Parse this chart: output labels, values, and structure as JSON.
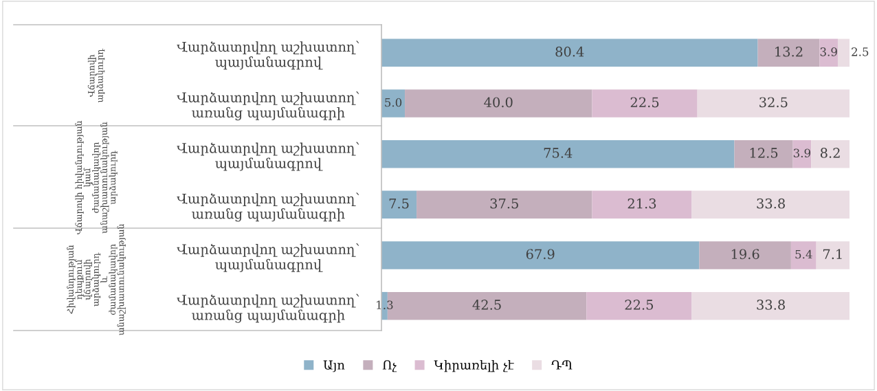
{
  "chart_data": {
    "type": "bar",
    "orientation": "horizontal",
    "stacked": true,
    "data_labels": true,
    "categories": [
      "Վարձատրվող աշխատող՝\nպայմանագրով",
      "Վարձատրվող աշխատող՝\nառանց պայմանագրի",
      "Վարձատրվող աշխատող՝\nպայմանագրով",
      "Վարձատրվող աշխատող՝\nառանց պայմանագրի",
      "Վարձատրվող աշխատող՝\nպայմանագրով",
      "Վարձատրվող աշխատող՝\nառանց պայմանագրի"
    ],
    "annotations": [
      "Վճարովի\nարձակուրդ",
      "Վճարովի հիվանդության\nկամ\nժամանակավոր\nանաշխատունակության\nարձակուրդ",
      "Հիվանդության\nդեպքում\nվճարովի\nարձակուրդ\nև\nժամանակավոր\nանաշխատունակության"
    ],
    "xlim": [
      0,
      100
    ],
    "legend": "bottom",
    "series": [
      {
        "name": "Այո",
        "color": "#8fb3c9",
        "values": [
          80.4,
          5.0,
          75.4,
          7.5,
          67.9,
          1.3
        ],
        "value_labels": [
          "80.4",
          "5.0",
          "75.4",
          "7.5",
          "67.9",
          "1.3"
        ]
      },
      {
        "name": "Ոչ",
        "color": "#c4afbc",
        "values": [
          13.2,
          40.0,
          12.5,
          37.5,
          19.6,
          42.5
        ],
        "value_labels": [
          "13.2",
          "40.0",
          "12.5",
          "37.5",
          "19.6",
          "42.5"
        ]
      },
      {
        "name": "Կիրառելի չէ",
        "color": "#dbbcd1",
        "values": [
          3.9,
          22.5,
          3.9,
          21.3,
          5.4,
          22.5
        ],
        "value_labels": [
          "3.9",
          "22.5",
          "3.9",
          "21.3",
          "5.4",
          "22.5"
        ]
      },
      {
        "name": "ԴՊ",
        "color": "#eadde3",
        "values": [
          2.5,
          32.5,
          8.2,
          33.8,
          7.1,
          33.8
        ],
        "value_labels": [
          "2.5",
          "32.5",
          "8.2",
          "33.8",
          "7.1",
          "33.8"
        ]
      }
    ]
  }
}
